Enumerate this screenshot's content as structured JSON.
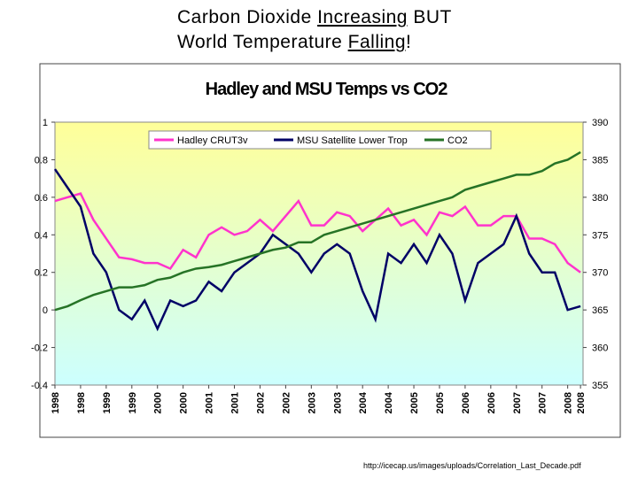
{
  "slide_title": {
    "lines": [
      [
        "Carbon Dioxide ",
        "Increasing",
        " BUT"
      ],
      [
        "World Temperature ",
        "Falling",
        "!"
      ]
    ]
  },
  "source": "http://icecap.us/images/uploads/Correlation_Last_Decade.pdf",
  "chart_data": {
    "type": "line",
    "title": "Hadley and MSU Temps vs CO2",
    "x": [
      1998.0,
      1998.25,
      1998.5,
      1998.75,
      1999.0,
      1999.25,
      1999.5,
      1999.75,
      2000.0,
      2000.25,
      2000.5,
      2000.75,
      2001.0,
      2001.25,
      2001.5,
      2001.75,
      2002.0,
      2002.25,
      2002.5,
      2002.75,
      2003.0,
      2003.25,
      2003.5,
      2003.75,
      2004.0,
      2004.25,
      2004.5,
      2004.75,
      2005.0,
      2005.25,
      2005.5,
      2005.75,
      2006.0,
      2006.25,
      2006.5,
      2006.75,
      2007.0,
      2007.25,
      2007.5,
      2007.75,
      2008.0,
      2008.25
    ],
    "series": [
      {
        "name": "Hadley CRUT3v",
        "color": "#ff33cc",
        "values": [
          0.58,
          0.6,
          0.62,
          0.48,
          0.38,
          0.28,
          0.27,
          0.25,
          0.25,
          0.22,
          0.32,
          0.28,
          0.4,
          0.44,
          0.4,
          0.42,
          0.48,
          0.42,
          0.5,
          0.58,
          0.45,
          0.45,
          0.52,
          0.5,
          0.42,
          0.48,
          0.54,
          0.45,
          0.48,
          0.4,
          0.52,
          0.5,
          0.55,
          0.45,
          0.45,
          0.5,
          0.5,
          0.38,
          0.38,
          0.35,
          0.25,
          0.2
        ]
      },
      {
        "name": "MSU Satellite Lower Trop",
        "color": "#000066",
        "values": [
          0.75,
          0.65,
          0.55,
          0.3,
          0.2,
          0.0,
          -0.05,
          0.05,
          -0.1,
          0.05,
          0.02,
          0.05,
          0.15,
          0.1,
          0.2,
          0.25,
          0.3,
          0.4,
          0.35,
          0.3,
          0.2,
          0.3,
          0.35,
          0.3,
          0.1,
          -0.05,
          0.3,
          0.25,
          0.35,
          0.25,
          0.4,
          0.3,
          0.05,
          0.25,
          0.3,
          0.35,
          0.5,
          0.3,
          0.2,
          0.2,
          0.0,
          0.02
        ]
      },
      {
        "name": "CO2",
        "color": "#267326",
        "axis": "y2",
        "values": [
          365,
          365.5,
          366.3,
          367,
          367.5,
          368,
          368,
          368.3,
          369,
          369.3,
          370,
          370.5,
          370.7,
          371,
          371.5,
          372,
          372.5,
          373,
          373.3,
          374,
          374,
          375,
          375.5,
          376,
          376.5,
          377,
          377.5,
          378,
          378.5,
          379,
          379.5,
          380,
          381,
          381.5,
          382,
          382.5,
          383,
          383,
          383.5,
          384.5,
          385,
          386
        ]
      }
    ],
    "xlim": [
      1998.0,
      2008.3
    ],
    "xticks": [
      1998,
      {
        "value": 1998.5,
        "label": "1998"
      },
      1999,
      {
        "value": 1999.5,
        "label": "1999"
      },
      2000,
      {
        "value": 2000.5,
        "label": "2000"
      },
      2001,
      {
        "value": 2001.5,
        "label": "2001"
      },
      2002,
      {
        "value": 2002.5,
        "label": "2002"
      },
      2003,
      {
        "value": 2003.5,
        "label": "2003"
      },
      2004,
      {
        "value": 2004.5,
        "label": "2004"
      },
      2005,
      {
        "value": 2005.5,
        "label": "2005"
      },
      2006,
      {
        "value": 2006.5,
        "label": "2006"
      },
      2007,
      {
        "value": 2007.5,
        "label": "2007"
      },
      2008,
      {
        "value": 2008.25,
        "label": "2008"
      }
    ],
    "ylim": [
      -0.4,
      1
    ],
    "yticks": [
      -0.4,
      -0.2,
      0,
      0.2,
      0.4,
      0.6,
      0.8,
      1
    ],
    "y2lim": [
      355,
      390
    ],
    "y2ticks": [
      355,
      360,
      365,
      370,
      375,
      380,
      385,
      390
    ]
  }
}
